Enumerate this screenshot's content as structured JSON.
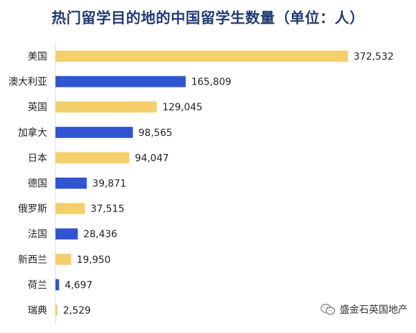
{
  "title": "热门留学目的地的中国留学生数量（单位：人）",
  "watermark": {
    "text": "盛金石英国地产",
    "icon": "wechat-icon"
  },
  "colors": {
    "primary": "#f5cf6b",
    "secondary": "#2f55d4",
    "title": "#203a73"
  },
  "chart_data": {
    "type": "bar",
    "orientation": "horizontal",
    "title": "热门留学目的地的中国留学生数量（单位：人）",
    "categories": [
      "美国",
      "澳大利亚",
      "英国",
      "加拿大",
      "日本",
      "德国",
      "俄罗斯",
      "法国",
      "新西兰",
      "荷兰",
      "瑞典"
    ],
    "values": [
      372532,
      165809,
      129045,
      98565,
      94047,
      39871,
      37515,
      28436,
      19950,
      4697,
      2529
    ],
    "value_labels": [
      "372,532",
      "165,809",
      "129,045",
      "98,565",
      "94,047",
      "39,871",
      "37,515",
      "28,436",
      "19,950",
      "4,697",
      "2,529"
    ],
    "bar_colors": [
      "#f5cf6b",
      "#2f55d4",
      "#f5cf6b",
      "#2f55d4",
      "#f5cf6b",
      "#2f55d4",
      "#f5cf6b",
      "#2f55d4",
      "#f5cf6b",
      "#2f55d4",
      "#f5cf6b"
    ],
    "xlim": [
      0,
      372532
    ],
    "grid": false,
    "legend": "none"
  }
}
